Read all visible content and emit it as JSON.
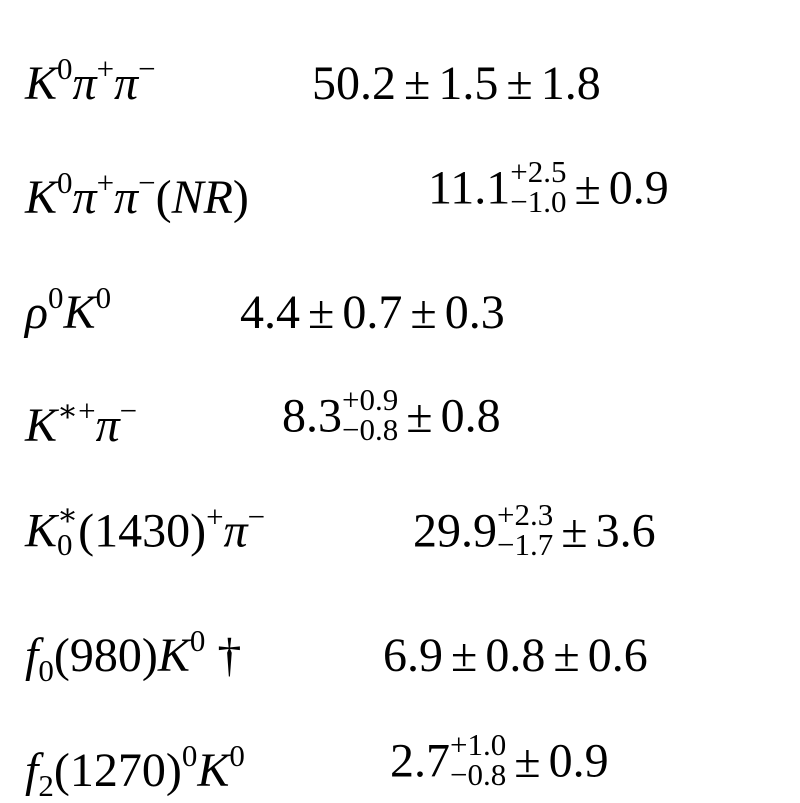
{
  "rows": [
    {
      "mode": [
        {
          "i": "K"
        },
        {
          "sup": "0"
        },
        {
          "i": "π"
        },
        {
          "sup": "+"
        },
        {
          "i": "π"
        },
        {
          "sup": "−"
        }
      ],
      "value": {
        "central": "50.2",
        "stat": "1.5",
        "syst": "1.8"
      }
    },
    {
      "mode": [
        {
          "i": "K"
        },
        {
          "sup": "0"
        },
        {
          "i": "π"
        },
        {
          "sup": "+"
        },
        {
          "i": "π"
        },
        {
          "sup": "−"
        },
        {
          "r": "("
        },
        {
          "i": "NR"
        },
        {
          "r": ")"
        }
      ],
      "value": {
        "central": "11.1",
        "plus": "+2.5",
        "minus": "−1.0",
        "syst": "0.9"
      }
    },
    {
      "mode": [
        {
          "i": "ρ"
        },
        {
          "sup": "0"
        },
        {
          "i": "K"
        },
        {
          "sup": "0"
        }
      ],
      "value": {
        "central": "4.4",
        "stat": "0.7",
        "syst": "0.3"
      }
    },
    {
      "mode": [
        {
          "i": "K"
        },
        {
          "sup": "∗+"
        },
        {
          "i": "π"
        },
        {
          "sup": "−"
        }
      ],
      "value": {
        "central": "8.3",
        "plus": "+0.9",
        "minus": "−0.8",
        "syst": "0.8"
      }
    },
    {
      "mode": [
        {
          "i": "K"
        },
        {
          "stack": [
            "∗",
            "0"
          ]
        },
        {
          "r": "(1430)"
        },
        {
          "sup": "+"
        },
        {
          "i": "π"
        },
        {
          "sup": "−"
        }
      ],
      "value": {
        "central": "29.9",
        "plus": "+2.3",
        "minus": "−1.7",
        "syst": "3.6"
      }
    },
    {
      "mode": [
        {
          "i": "f"
        },
        {
          "sub": "0"
        },
        {
          "r": "(980)"
        },
        {
          "i": "K"
        },
        {
          "sup": "0"
        },
        {
          "r": " †"
        }
      ],
      "value": {
        "central": "6.9",
        "stat": "0.8",
        "syst": "0.6"
      }
    },
    {
      "mode": [
        {
          "i": "f"
        },
        {
          "sub": "2"
        },
        {
          "r": "(1270)"
        },
        {
          "sup": "0"
        },
        {
          "i": "K"
        },
        {
          "sup": "0"
        }
      ],
      "value": {
        "central": "2.7",
        "plus": "+1.0",
        "minus": "−0.8",
        "syst": "0.9"
      }
    }
  ],
  "pm_symbol": "±"
}
